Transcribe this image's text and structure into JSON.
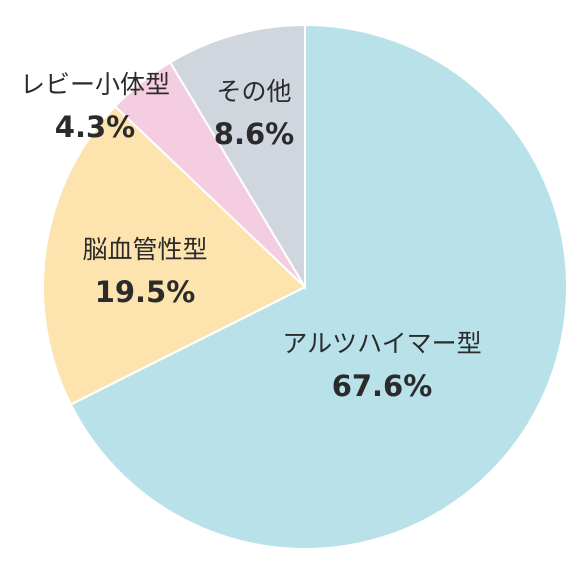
{
  "chart_data": {
    "type": "pie",
    "start_angle_deg": 0,
    "direction": "clockwise",
    "slices": [
      {
        "label": "アルツハイマー型",
        "value": 67.6,
        "value_label": "67.6%",
        "color": "#b8e1ea"
      },
      {
        "label": "脳血管性型",
        "value": 19.5,
        "value_label": "19.5%",
        "color": "#fde3ad"
      },
      {
        "label": "レビー小体型",
        "value": 4.3,
        "value_label": "4.3%",
        "color": "#f5cde0"
      },
      {
        "label": "その他",
        "value": 8.6,
        "value_label": "8.6%",
        "color": "#cfd6de"
      }
    ]
  }
}
